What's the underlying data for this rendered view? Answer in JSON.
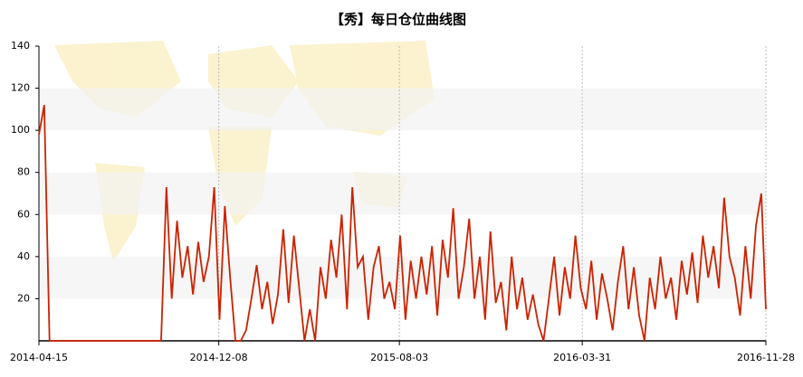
{
  "chart_data": {
    "type": "line",
    "title": "【秀】每日仓位曲线图",
    "x": [
      "2014-04-15",
      "2014-04-22",
      "2014-04-29",
      "2014-05-06",
      "2014-05-13",
      "2014-05-20",
      "2014-05-27",
      "2014-06-03",
      "2014-06-10",
      "2014-06-17",
      "2014-06-24",
      "2014-07-01",
      "2014-07-08",
      "2014-07-15",
      "2014-07-22",
      "2014-07-29",
      "2014-08-05",
      "2014-08-12",
      "2014-08-19",
      "2014-08-26",
      "2014-09-02",
      "2014-09-09",
      "2014-09-16",
      "2014-09-23",
      "2014-09-30",
      "2014-10-07",
      "2014-10-14",
      "2014-10-21",
      "2014-10-28",
      "2014-11-04",
      "2014-11-11",
      "2014-11-18",
      "2014-11-25",
      "2014-12-02",
      "2014-12-09",
      "2014-12-16",
      "2014-12-23",
      "2014-12-30",
      "2015-01-06",
      "2015-01-13",
      "2015-01-20",
      "2015-01-27",
      "2015-02-03",
      "2015-02-10",
      "2015-02-17",
      "2015-02-24",
      "2015-03-03",
      "2015-03-10",
      "2015-03-17",
      "2015-03-24",
      "2015-03-31",
      "2015-04-07",
      "2015-04-14",
      "2015-04-21",
      "2015-04-28",
      "2015-05-05",
      "2015-05-12",
      "2015-05-19",
      "2015-05-26",
      "2015-06-02",
      "2015-06-09",
      "2015-06-16",
      "2015-06-23",
      "2015-06-30",
      "2015-07-07",
      "2015-07-14",
      "2015-07-21",
      "2015-07-28",
      "2015-08-04",
      "2015-08-11",
      "2015-08-18",
      "2015-08-25",
      "2015-09-01",
      "2015-09-08",
      "2015-09-15",
      "2015-09-22",
      "2015-09-29",
      "2015-10-06",
      "2015-10-13",
      "2015-10-20",
      "2015-10-27",
      "2015-11-03",
      "2015-11-10",
      "2015-11-17",
      "2015-11-24",
      "2015-12-01",
      "2015-12-08",
      "2015-12-15",
      "2015-12-22",
      "2015-12-29",
      "2016-01-05",
      "2016-01-12",
      "2016-01-19",
      "2016-01-26",
      "2016-02-02",
      "2016-02-09",
      "2016-02-16",
      "2016-02-23",
      "2016-03-01",
      "2016-03-08",
      "2016-03-15",
      "2016-03-22",
      "2016-03-29",
      "2016-04-05",
      "2016-04-12",
      "2016-04-19",
      "2016-04-26",
      "2016-05-03",
      "2016-05-10",
      "2016-05-17",
      "2016-05-24",
      "2016-05-31",
      "2016-06-07",
      "2016-06-14",
      "2016-06-21",
      "2016-06-28",
      "2016-07-05",
      "2016-07-12",
      "2016-07-19",
      "2016-07-26",
      "2016-08-02",
      "2016-08-09",
      "2016-08-16",
      "2016-08-23",
      "2016-08-30",
      "2016-09-06",
      "2016-09-13",
      "2016-09-20",
      "2016-09-27",
      "2016-10-04",
      "2016-10-11",
      "2016-10-18",
      "2016-10-25",
      "2016-11-01",
      "2016-11-08",
      "2016-11-15",
      "2016-11-22",
      "2016-11-28"
    ],
    "series": [
      {
        "color": "#cc2200",
        "values": [
          98,
          112,
          0,
          0,
          0,
          0,
          0,
          0,
          0,
          0,
          0,
          0,
          0,
          0,
          0,
          0,
          0,
          0,
          0,
          0,
          0,
          0,
          0,
          0,
          73,
          20,
          57,
          30,
          45,
          22,
          47,
          28,
          40,
          73,
          10,
          64,
          30,
          0,
          0,
          5,
          20,
          36,
          15,
          28,
          8,
          22,
          53,
          18,
          50,
          25,
          0,
          15,
          0,
          35,
          20,
          48,
          30,
          60,
          15,
          73,
          35,
          40,
          10,
          35,
          45,
          20,
          28,
          15,
          50,
          10,
          38,
          20,
          40,
          22,
          45,
          12,
          48,
          30,
          63,
          20,
          35,
          58,
          20,
          40,
          10,
          52,
          18,
          28,
          5,
          40,
          15,
          30,
          10,
          22,
          8,
          0,
          20,
          40,
          12,
          35,
          20,
          50,
          25,
          15,
          38,
          10,
          32,
          20,
          5,
          28,
          45,
          15,
          35,
          12,
          0,
          30,
          15,
          40,
          20,
          30,
          10,
          38,
          22,
          42,
          18,
          50,
          30,
          45,
          25,
          68,
          40,
          30,
          12,
          45,
          20,
          55,
          70,
          15
        ]
      }
    ],
    "xlim": [
      "2014-04-15",
      "2016-11-28"
    ],
    "xticks": [
      "2014-04-15",
      "2014-12-08",
      "2015-08-03",
      "2016-03-31",
      "2016-11-28"
    ],
    "ylim": [
      0,
      140
    ],
    "yticks": [
      20,
      40,
      60,
      80,
      100,
      120,
      140
    ],
    "grid": true
  }
}
